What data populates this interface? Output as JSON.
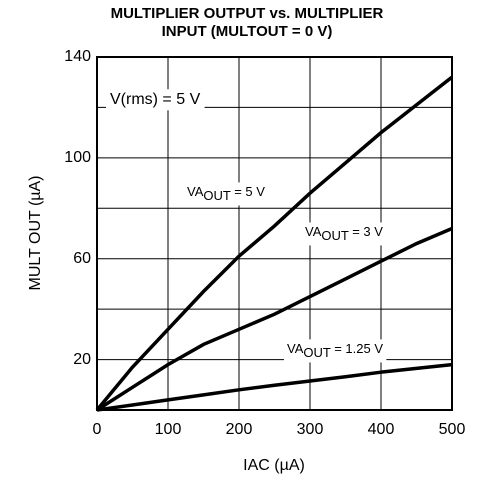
{
  "chart_data": {
    "type": "line",
    "title": [
      "MULTIPLIER OUTPUT vs. MULTIPLIER",
      "INPUT (MULTOUT = 0 V)"
    ],
    "x_label": "IAC (µA)",
    "y_label": "MULT OUT (µA)",
    "annotation": "V(rms) = 5 V",
    "x": [
      0,
      50,
      100,
      150,
      200,
      250,
      300,
      350,
      400,
      450,
      500
    ],
    "series": [
      {
        "name": {
          "main": "VA",
          "sub": "OUT",
          "rest": " = 5 V"
        },
        "color": "#000000",
        "values": [
          0,
          17,
          32,
          47,
          61,
          73,
          86,
          98,
          110,
          121,
          132
        ]
      },
      {
        "name": {
          "main": "VA",
          "sub": "OUT",
          "rest": " = 3 V"
        },
        "color": "#000000",
        "values": [
          0,
          9,
          18,
          26,
          32,
          38,
          45,
          52,
          59,
          66,
          72
        ]
      },
      {
        "name": {
          "main": "VA",
          "sub": "OUT",
          "rest": " = 1.25 V"
        },
        "color": "#000000",
        "values": [
          0,
          2,
          4,
          6,
          8,
          9.8,
          11.5,
          13.2,
          15,
          16.5,
          18
        ]
      }
    ],
    "xlim": [
      0,
      500
    ],
    "xticks": [
      0,
      100,
      200,
      300,
      400,
      500
    ],
    "ylim": [
      0,
      140
    ],
    "yticks": [
      20,
      60,
      100,
      140
    ],
    "yminor": [
      40,
      80,
      120
    ],
    "grid": true
  }
}
